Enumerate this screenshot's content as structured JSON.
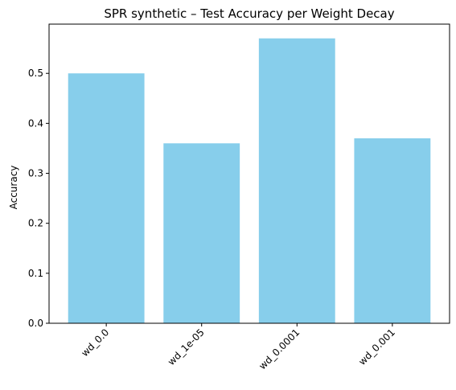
{
  "chart_data": {
    "type": "bar",
    "title": "SPR synthetic – Test Accuracy per Weight Decay",
    "xlabel": "",
    "ylabel": "Accuracy",
    "categories": [
      "wd_0.0",
      "wd_1e-05",
      "wd_0.0001",
      "wd_0.001"
    ],
    "values": [
      0.5,
      0.36,
      0.57,
      0.37
    ],
    "ylim": [
      0,
      0.5985
    ],
    "yticks": [
      "0.0",
      "0.1",
      "0.2",
      "0.3",
      "0.4",
      "0.5"
    ],
    "bar_color": "#87ceeb",
    "grid": false,
    "legend": "none"
  }
}
